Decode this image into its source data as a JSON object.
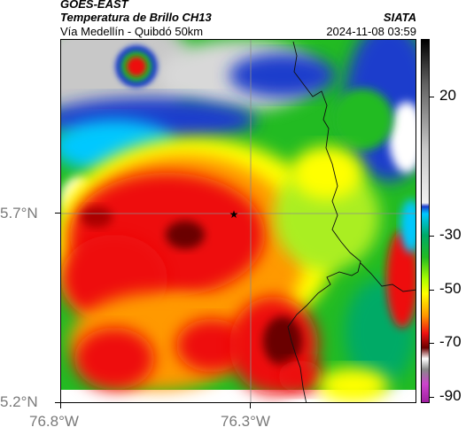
{
  "header": {
    "satellite": "GOES-EAST",
    "product": "Temperatura de Brillo CH13",
    "region": "Vía Medellín - Quibdó 50km",
    "agency": "SIATA",
    "datetime": "2024-11-08 03:59"
  },
  "axes": {
    "lat_labels": [
      "5.7°N",
      "5.2°N"
    ],
    "lon_labels": [
      "76.8°W",
      "76.3°W"
    ]
  },
  "colorbar": {
    "labels": [
      "20",
      "-30",
      "-50",
      "-70",
      "-90"
    ],
    "unit": "",
    "colors": {
      "gray_top": "#000000",
      "gray_mid": "#c8c8c8",
      "blue": "#1a3ccc",
      "cyan": "#00c8ff",
      "green": "#22bb22",
      "yellow": "#ffff00",
      "orange": "#ff9900",
      "red": "#ee1111",
      "darkred": "#6a0000",
      "magenta": "#cc44cc"
    }
  },
  "marker": {
    "symbol": "★"
  }
}
